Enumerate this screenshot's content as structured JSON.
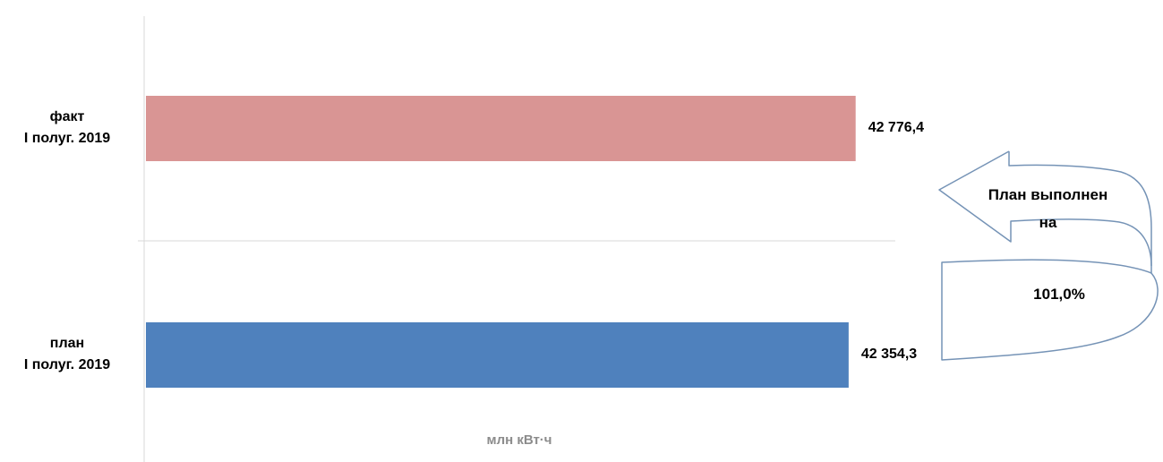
{
  "chart_data": {
    "type": "bar",
    "orientation": "horizontal",
    "categories": [
      [
        "факт",
        "I полуг. 2019"
      ],
      [
        "план",
        "I полуг. 2019"
      ]
    ],
    "values": [
      42776.4,
      42354.3
    ],
    "value_labels": [
      "42 776,4",
      "42 354,3"
    ],
    "colors": [
      "#d99594",
      "#4f81bd"
    ],
    "xlabel": "млн кВт·ч",
    "xlim": [
      0,
      46300
    ],
    "grid": false
  },
  "callout": {
    "line1": "План выполнен",
    "line2": "на",
    "percent": "101,0%",
    "stroke": "#7593b6"
  }
}
